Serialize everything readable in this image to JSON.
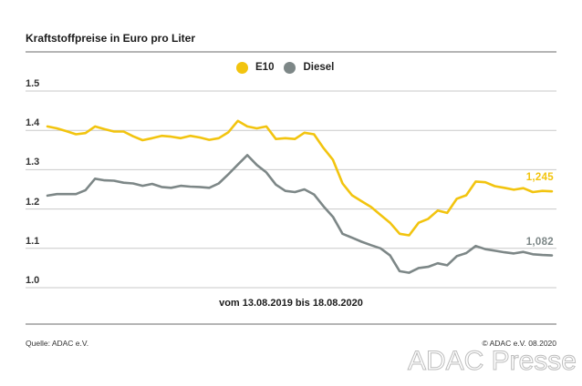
{
  "footer": {
    "source": "Quelle: ADAC e.V.",
    "copyright": "© ADAC e.V. 08.2020"
  },
  "watermark": "ADAC Presse",
  "colors": {
    "grid": "#c9c9c9",
    "rule": "#6a6a6a"
  },
  "chart_data": {
    "type": "line",
    "title": "Kraftstoffpreise in Euro pro Liter",
    "xlabel": "vom 13.08.2019 bis 18.08.2020",
    "ylim": [
      1.0,
      1.5
    ],
    "yticks": [
      1.5,
      1.4,
      1.3,
      1.2,
      1.1,
      1.0
    ],
    "ytick_labels": [
      "1.5",
      "1.4",
      "1.3",
      "1.2",
      "1.1",
      "1.0"
    ],
    "grid": true,
    "legend": "top",
    "series": [
      {
        "name": "E10",
        "color": "#f2c40f",
        "end_label": "1,245",
        "values": [
          1.41,
          1.405,
          1.398,
          1.39,
          1.393,
          1.41,
          1.403,
          1.397,
          1.397,
          1.385,
          1.375,
          1.38,
          1.386,
          1.384,
          1.38,
          1.386,
          1.382,
          1.376,
          1.38,
          1.395,
          1.424,
          1.41,
          1.405,
          1.41,
          1.378,
          1.38,
          1.378,
          1.394,
          1.39,
          1.355,
          1.325,
          1.265,
          1.235,
          1.22,
          1.205,
          1.185,
          1.165,
          1.137,
          1.133,
          1.165,
          1.175,
          1.196,
          1.19,
          1.226,
          1.235,
          1.27,
          1.268,
          1.258,
          1.254,
          1.249,
          1.253,
          1.243,
          1.246,
          1.245
        ]
      },
      {
        "name": "Diesel",
        "color": "#7d8787",
        "end_label": "1,082",
        "values": [
          1.234,
          1.238,
          1.238,
          1.238,
          1.248,
          1.277,
          1.273,
          1.272,
          1.267,
          1.265,
          1.259,
          1.264,
          1.256,
          1.254,
          1.259,
          1.257,
          1.256,
          1.254,
          1.265,
          1.288,
          1.313,
          1.337,
          1.312,
          1.293,
          1.262,
          1.246,
          1.243,
          1.25,
          1.237,
          1.207,
          1.18,
          1.137,
          1.127,
          1.117,
          1.108,
          1.1,
          1.082,
          1.042,
          1.038,
          1.05,
          1.053,
          1.062,
          1.057,
          1.08,
          1.088,
          1.106,
          1.098,
          1.094,
          1.09,
          1.087,
          1.091,
          1.085,
          1.083,
          1.082
        ]
      }
    ]
  }
}
